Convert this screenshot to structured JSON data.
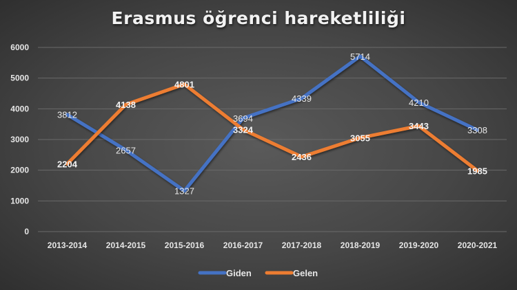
{
  "chart_data": {
    "type": "line",
    "title": "Erasmus öğrenci hareketliliği",
    "xlabel": "",
    "ylabel": "",
    "categories": [
      "2013-2014",
      "2014-2015",
      "2015-2016",
      "2016-2017",
      "2017-2018",
      "2018-2019",
      "2019-2020",
      "2020-2021"
    ],
    "series": [
      {
        "name": "Giden",
        "color": "#4472c4",
        "values": [
          3812,
          2657,
          1327,
          3694,
          4339,
          5714,
          4210,
          3308
        ]
      },
      {
        "name": "Gelen",
        "color": "#ed7d31",
        "values": [
          2204,
          4138,
          4801,
          3324,
          2436,
          3055,
          3443,
          1985
        ]
      }
    ],
    "ylim": [
      0,
      6000
    ],
    "yticks": [
      0,
      1000,
      2000,
      3000,
      4000,
      5000,
      6000
    ],
    "grid": true,
    "legend_position": "bottom",
    "data_labels": true
  }
}
